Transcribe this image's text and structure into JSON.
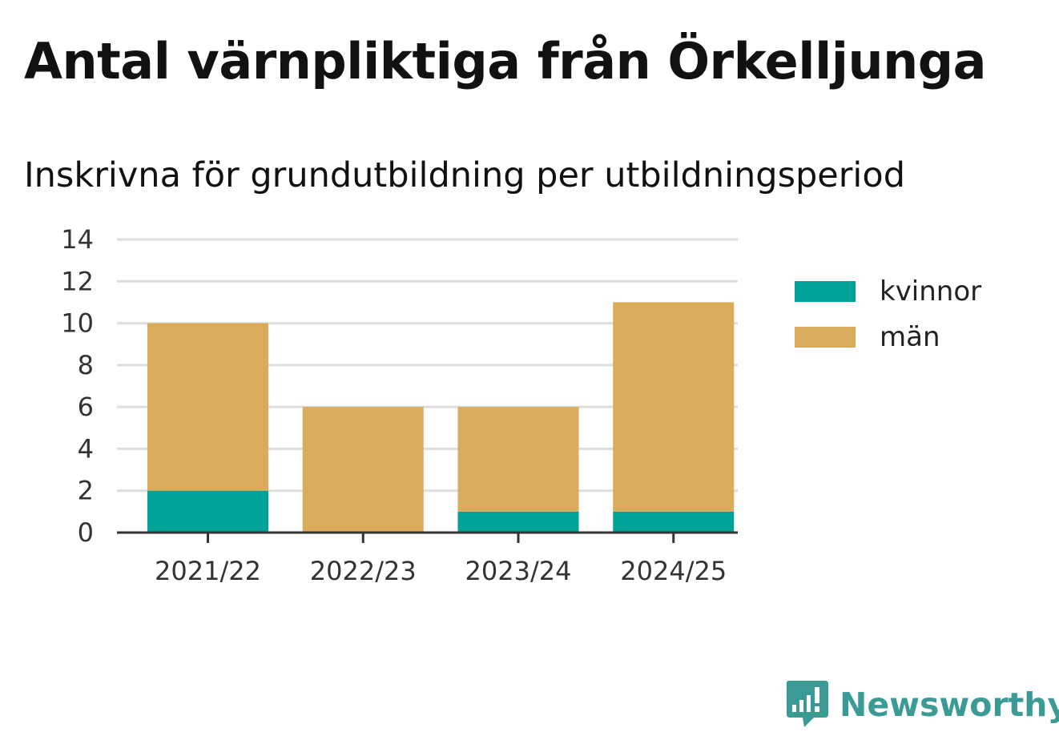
{
  "header": {
    "title": "Antal värnpliktiga från Örkelljunga",
    "subtitle": "Inskrivna för grundutbildning per utbildningsperiod"
  },
  "colors": {
    "kvinnor": "#00a398",
    "man": "#d9ab5a",
    "grid": "#dddddd",
    "axis": "#333333",
    "brand": "#3a9a94"
  },
  "chart_data": {
    "type": "bar",
    "stacked": true,
    "categories": [
      "2021/22",
      "2022/23",
      "2023/24",
      "2024/25"
    ],
    "series": [
      {
        "name": "kvinnor",
        "values": [
          2,
          0,
          1,
          1
        ]
      },
      {
        "name": "män",
        "values": [
          8,
          6,
          5,
          10
        ]
      }
    ],
    "ylim": [
      0,
      14
    ],
    "yticks": [
      0,
      2,
      4,
      6,
      8,
      10,
      12,
      14
    ],
    "grid": true,
    "legend_position": "right"
  },
  "brand": {
    "name": "Newsworthy",
    "icon": "newsworthy-logo-icon"
  }
}
